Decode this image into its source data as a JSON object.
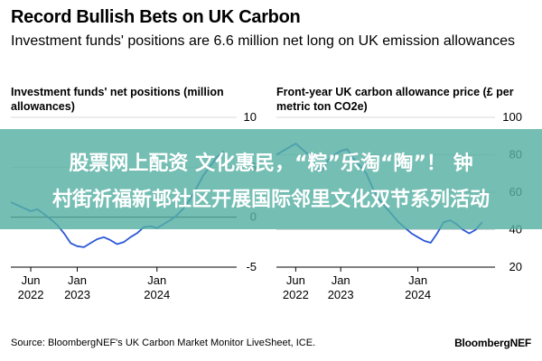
{
  "header": {
    "title": "Record Bullish Bets on UK Carbon",
    "subtitle": "Investment funds' positions are 6.6 million net long on UK emission allowances"
  },
  "chart_data": [
    {
      "type": "line",
      "title": "Investment funds' net positions (million allowances)",
      "ylim": [
        -5,
        10
      ],
      "y_ticks": [
        10,
        5,
        0,
        -5
      ],
      "x_ticks": [
        {
          "label": [
            "Jun",
            "2022"
          ],
          "x": "2022-06"
        },
        {
          "label": [
            "Jan",
            "2023"
          ],
          "x": "2023-01"
        },
        {
          "label": [
            "Jan",
            "2024"
          ],
          "x": "2024-01"
        }
      ],
      "xlim": [
        "2022-03",
        "2025-01"
      ],
      "zero_line": true,
      "color": "#2a57d6",
      "series": [
        {
          "x": [
            "2022-03",
            "2022-04",
            "2022-05",
            "2022-06",
            "2022-07",
            "2022-08",
            "2022-09",
            "2022-10",
            "2022-11",
            "2022-12",
            "2023-01",
            "2023-02",
            "2023-03",
            "2023-04",
            "2023-05",
            "2023-06",
            "2023-07",
            "2023-08",
            "2023-09",
            "2023-10",
            "2023-11",
            "2023-12",
            "2024-01",
            "2024-02",
            "2024-03",
            "2024-04",
            "2024-05",
            "2024-06",
            "2024-07",
            "2024-08",
            "2024-09",
            "2024-10",
            "2024-11"
          ],
          "values": [
            1.5,
            1.2,
            0.9,
            0.6,
            0.8,
            0.3,
            -0.2,
            -0.8,
            -1.6,
            -2.6,
            -2.9,
            -3.0,
            -2.6,
            -2.2,
            -2.0,
            -2.3,
            -2.7,
            -2.5,
            -2.0,
            -1.6,
            -1.0,
            -0.9,
            -1.1,
            -0.7,
            -0.3,
            0.2,
            0.9,
            1.8,
            3.0,
            4.2,
            5.1,
            6.0,
            6.6
          ]
        }
      ]
    },
    {
      "type": "line",
      "title": "Front-year UK carbon allowance price (£ per metric ton CO2e)",
      "ylim": [
        20,
        100
      ],
      "y_ticks": [
        100,
        80,
        60,
        40,
        20
      ],
      "x_ticks": [
        {
          "label": [
            "Jun",
            "2022"
          ],
          "x": "2022-06"
        },
        {
          "label": [
            "Jan",
            "2023"
          ],
          "x": "2023-01"
        },
        {
          "label": [
            "Jan",
            "2024"
          ],
          "x": "2024-01"
        }
      ],
      "xlim": [
        "2022-03",
        "2025-01"
      ],
      "color": "#2a57d6",
      "series": [
        {
          "x": [
            "2022-03",
            "2022-04",
            "2022-05",
            "2022-06",
            "2022-07",
            "2022-08",
            "2022-09",
            "2022-10",
            "2022-11",
            "2022-12",
            "2023-01",
            "2023-02",
            "2023-03",
            "2023-04",
            "2023-05",
            "2023-06",
            "2023-07",
            "2023-08",
            "2023-09",
            "2023-10",
            "2023-11",
            "2023-12",
            "2024-01",
            "2024-02",
            "2024-03",
            "2024-04",
            "2024-05",
            "2024-06",
            "2024-07",
            "2024-08",
            "2024-09",
            "2024-10",
            "2024-11"
          ],
          "values": [
            80,
            82,
            84,
            86,
            83,
            80,
            74,
            71,
            77,
            80,
            82,
            83,
            78,
            74,
            70,
            62,
            56,
            52,
            48,
            44,
            41,
            38,
            36,
            34,
            33,
            38,
            44,
            45,
            43,
            40,
            38,
            40,
            44
          ]
        }
      ]
    }
  ],
  "overlay": {
    "line1": "股票网上配资 文化惠民，“粽”乐淘“陶”！ 钟",
    "line2": "村街祈福新邨社区开展国际邻里文化双节系列活动"
  },
  "footer": {
    "source": "Source: BloombergNEF's UK Carbon Market Monitor LiveSheet, ICE.",
    "brand": "BloombergNEF"
  }
}
